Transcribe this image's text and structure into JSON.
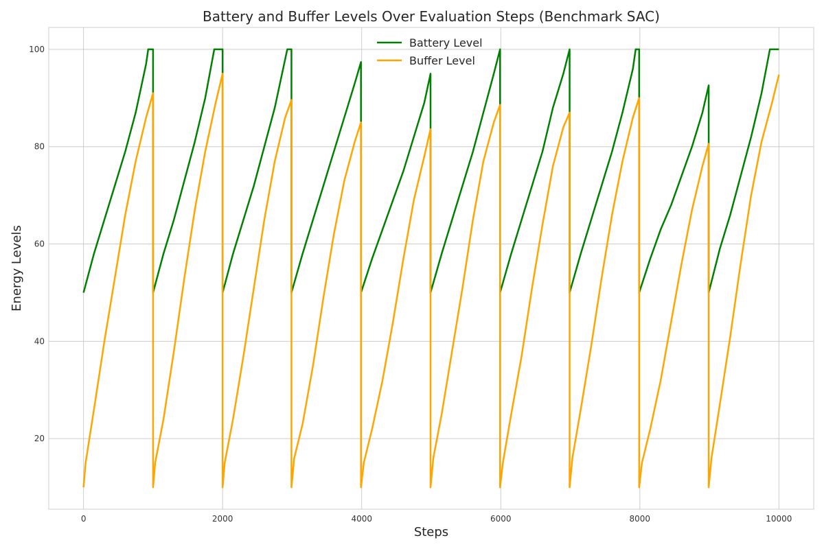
{
  "chart_data": {
    "type": "line",
    "title": "Battery and Buffer Levels Over Evaluation Steps (Benchmark SAC)",
    "xlabel": "Steps",
    "ylabel": "Energy Levels",
    "xlim": [
      -500,
      10500
    ],
    "ylim": [
      5.5,
      104.5
    ],
    "xticks": [
      0,
      2000,
      4000,
      6000,
      8000,
      10000
    ],
    "xtick_labels": [
      "0",
      "2000",
      "4000",
      "6000",
      "8000",
      "10000"
    ],
    "yticks": [
      20,
      40,
      60,
      80,
      100
    ],
    "ytick_labels": [
      "20",
      "40",
      "60",
      "80",
      "100"
    ],
    "grid": true,
    "legend_position": "top-center",
    "series": [
      {
        "name": "Battery Level",
        "color": "#008000",
        "points": [
          [
            0,
            50
          ],
          [
            150,
            58
          ],
          [
            300,
            65
          ],
          [
            450,
            72
          ],
          [
            600,
            79
          ],
          [
            750,
            87
          ],
          [
            900,
            97
          ],
          [
            930,
            100
          ],
          [
            1000,
            100
          ],
          [
            1000,
            50
          ],
          [
            1150,
            58
          ],
          [
            1300,
            65
          ],
          [
            1450,
            73
          ],
          [
            1600,
            81
          ],
          [
            1750,
            90
          ],
          [
            1880,
            100
          ],
          [
            2000,
            100
          ],
          [
            2000,
            50
          ],
          [
            2150,
            58
          ],
          [
            2300,
            65
          ],
          [
            2450,
            72
          ],
          [
            2600,
            80
          ],
          [
            2750,
            88
          ],
          [
            2930,
            100
          ],
          [
            2990,
            100
          ],
          [
            2990,
            50
          ],
          [
            3150,
            58
          ],
          [
            3300,
            65
          ],
          [
            3450,
            72
          ],
          [
            3600,
            79
          ],
          [
            3750,
            86
          ],
          [
            3900,
            93
          ],
          [
            3990,
            97.4
          ],
          [
            3990,
            50
          ],
          [
            4150,
            57
          ],
          [
            4300,
            63
          ],
          [
            4450,
            69
          ],
          [
            4600,
            75
          ],
          [
            4750,
            82
          ],
          [
            4900,
            89
          ],
          [
            4990,
            95
          ],
          [
            4990,
            50
          ],
          [
            5150,
            58
          ],
          [
            5300,
            65
          ],
          [
            5450,
            72
          ],
          [
            5600,
            79
          ],
          [
            5750,
            87
          ],
          [
            5900,
            95
          ],
          [
            5990,
            100
          ],
          [
            5990,
            50
          ],
          [
            6150,
            58
          ],
          [
            6300,
            65
          ],
          [
            6450,
            72
          ],
          [
            6600,
            79
          ],
          [
            6750,
            88
          ],
          [
            6900,
            95
          ],
          [
            6990,
            100
          ],
          [
            6990,
            50
          ],
          [
            7150,
            58
          ],
          [
            7300,
            65
          ],
          [
            7450,
            72
          ],
          [
            7600,
            79
          ],
          [
            7750,
            87
          ],
          [
            7900,
            96
          ],
          [
            7940,
            100
          ],
          [
            7990,
            100
          ],
          [
            7990,
            50
          ],
          [
            8150,
            57
          ],
          [
            8300,
            63
          ],
          [
            8450,
            68
          ],
          [
            8600,
            74
          ],
          [
            8750,
            80
          ],
          [
            8900,
            87
          ],
          [
            8990,
            92.6
          ],
          [
            8990,
            50
          ],
          [
            9150,
            59
          ],
          [
            9300,
            66
          ],
          [
            9450,
            74
          ],
          [
            9600,
            82
          ],
          [
            9750,
            91
          ],
          [
            9870,
            100
          ],
          [
            10000,
            100
          ]
        ]
      },
      {
        "name": "Buffer Level",
        "color": "#FFA500",
        "points": [
          [
            0,
            10
          ],
          [
            30,
            15
          ],
          [
            150,
            26
          ],
          [
            300,
            40
          ],
          [
            450,
            53
          ],
          [
            600,
            66
          ],
          [
            750,
            77
          ],
          [
            900,
            86
          ],
          [
            1000,
            91
          ],
          [
            1000,
            10
          ],
          [
            1030,
            15
          ],
          [
            1150,
            24
          ],
          [
            1300,
            38
          ],
          [
            1450,
            53
          ],
          [
            1600,
            67
          ],
          [
            1750,
            79
          ],
          [
            1900,
            89
          ],
          [
            2000,
            95
          ],
          [
            2000,
            10
          ],
          [
            2030,
            15
          ],
          [
            2150,
            24
          ],
          [
            2300,
            37
          ],
          [
            2450,
            51
          ],
          [
            2600,
            65
          ],
          [
            2750,
            77
          ],
          [
            2900,
            86
          ],
          [
            2990,
            89.6
          ],
          [
            2990,
            10
          ],
          [
            3030,
            16
          ],
          [
            3150,
            23
          ],
          [
            3300,
            35
          ],
          [
            3450,
            49
          ],
          [
            3600,
            62
          ],
          [
            3750,
            73
          ],
          [
            3900,
            81
          ],
          [
            3990,
            85
          ],
          [
            3990,
            10
          ],
          [
            4030,
            15
          ],
          [
            4150,
            22
          ],
          [
            4300,
            32
          ],
          [
            4450,
            44
          ],
          [
            4600,
            57
          ],
          [
            4750,
            69
          ],
          [
            4900,
            78
          ],
          [
            4990,
            83.6
          ],
          [
            4990,
            10
          ],
          [
            5030,
            16
          ],
          [
            5150,
            25
          ],
          [
            5300,
            38
          ],
          [
            5450,
            51
          ],
          [
            5600,
            65
          ],
          [
            5750,
            77
          ],
          [
            5900,
            85
          ],
          [
            5990,
            88.6
          ],
          [
            5990,
            10
          ],
          [
            6030,
            15
          ],
          [
            6150,
            25
          ],
          [
            6300,
            37
          ],
          [
            6450,
            51
          ],
          [
            6600,
            64
          ],
          [
            6750,
            76
          ],
          [
            6900,
            84
          ],
          [
            6990,
            87
          ],
          [
            6990,
            10
          ],
          [
            7030,
            16
          ],
          [
            7150,
            26
          ],
          [
            7300,
            39
          ],
          [
            7450,
            53
          ],
          [
            7600,
            66
          ],
          [
            7750,
            77
          ],
          [
            7900,
            86
          ],
          [
            7990,
            90
          ],
          [
            7990,
            10
          ],
          [
            8030,
            15
          ],
          [
            8150,
            22
          ],
          [
            8300,
            32
          ],
          [
            8450,
            44
          ],
          [
            8600,
            56
          ],
          [
            8750,
            67
          ],
          [
            8900,
            76
          ],
          [
            8990,
            80.6
          ],
          [
            8990,
            10
          ],
          [
            9030,
            16
          ],
          [
            9150,
            27
          ],
          [
            9300,
            41
          ],
          [
            9450,
            56
          ],
          [
            9600,
            70
          ],
          [
            9750,
            81
          ],
          [
            9900,
            89
          ],
          [
            10000,
            94.8
          ]
        ]
      }
    ]
  }
}
